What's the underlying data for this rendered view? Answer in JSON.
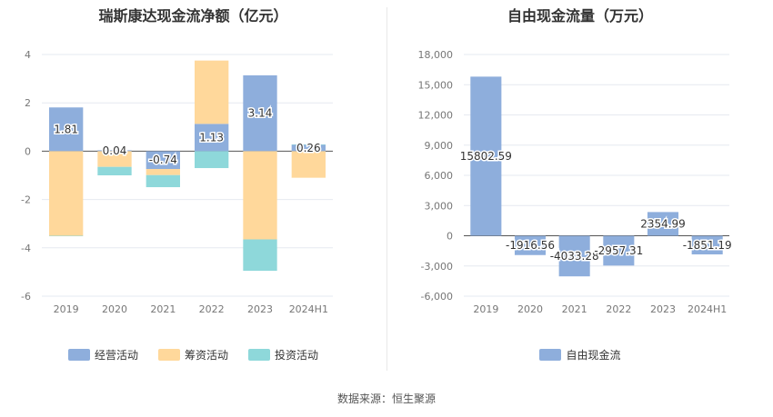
{
  "source_text": "数据来源：恒生聚源",
  "chart_data": [
    {
      "type": "bar",
      "title": "瑞斯康达现金流净额（亿元）",
      "categories": [
        "2019",
        "2020",
        "2021",
        "2022",
        "2023",
        "2024H1"
      ],
      "ylim": [
        -6,
        4
      ],
      "yticks": [
        -6,
        -4,
        -2,
        0,
        2,
        4
      ],
      "ytick_labels": [
        "-6",
        "-4",
        "-2",
        "0",
        "2",
        "4"
      ],
      "stacked": true,
      "grid": true,
      "legend_position": "bottom",
      "series": [
        {
          "name": "经营活动",
          "color": "#8eaedc",
          "values": [
            1.81,
            0.04,
            -0.74,
            1.13,
            3.14,
            0.26
          ]
        },
        {
          "name": "筹资活动",
          "color": "#ffd89b",
          "values": [
            -3.5,
            -0.65,
            -0.25,
            2.62,
            -3.65,
            -1.1
          ]
        },
        {
          "name": "投资活动",
          "color": "#8ed8da",
          "values": [
            -0.02,
            -0.35,
            -0.5,
            -0.7,
            -1.3,
            0.02
          ]
        }
      ],
      "data_labels": [
        "1.81",
        "0.04",
        "-0.74",
        "1.13",
        "3.14",
        "0.26"
      ]
    },
    {
      "type": "bar",
      "title": "自由现金流量（万元）",
      "categories": [
        "2019",
        "2020",
        "2021",
        "2022",
        "2023",
        "2024H1"
      ],
      "ylim": [
        -6000,
        18000
      ],
      "yticks": [
        -6000,
        -3000,
        0,
        3000,
        6000,
        9000,
        12000,
        15000,
        18000
      ],
      "ytick_labels": [
        "-6,000",
        "-3,000",
        "0",
        "3,000",
        "6,000",
        "9,000",
        "12,000",
        "15,000",
        "18,000"
      ],
      "grid": true,
      "legend_position": "bottom",
      "series": [
        {
          "name": "自由现金流",
          "color": "#8eaedc",
          "values": [
            15802.59,
            -1916.56,
            -4033.28,
            -2957.31,
            2354.99,
            -1851.19
          ]
        }
      ],
      "data_labels": [
        "15802.59",
        "-1916.56",
        "-4033.28",
        "-2957.31",
        "2354.99",
        "-1851.19"
      ]
    }
  ]
}
